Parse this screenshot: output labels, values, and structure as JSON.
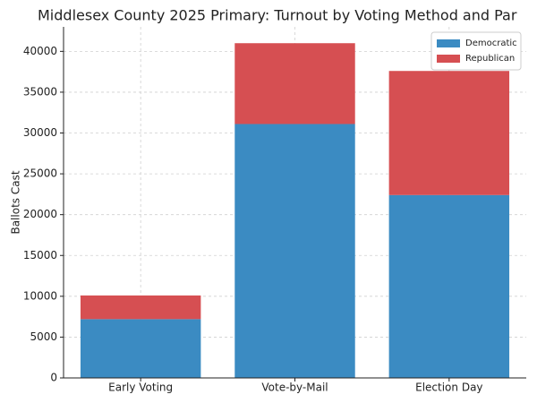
{
  "chart_data": {
    "type": "stacked_bar",
    "title": "Middlesex County 2025 Primary: Turnout by Voting Method and Par",
    "y_label": "Ballots Cast",
    "categories": [
      "Early Voting",
      "Vote-by-Mail",
      "Election Day"
    ],
    "series": [
      {
        "name": "Democratic",
        "color": "#3b8bc2",
        "values": [
          7200,
          31100,
          22400
        ]
      },
      {
        "name": "Republican",
        "color": "#d64f52",
        "values": [
          2900,
          9900,
          15200
        ]
      }
    ],
    "ylim": [
      0,
      43000
    ],
    "yticks": [
      0,
      5000,
      10000,
      15000,
      20000,
      25000,
      30000,
      35000,
      40000
    ],
    "grid": true,
    "legend": "upper-right"
  }
}
